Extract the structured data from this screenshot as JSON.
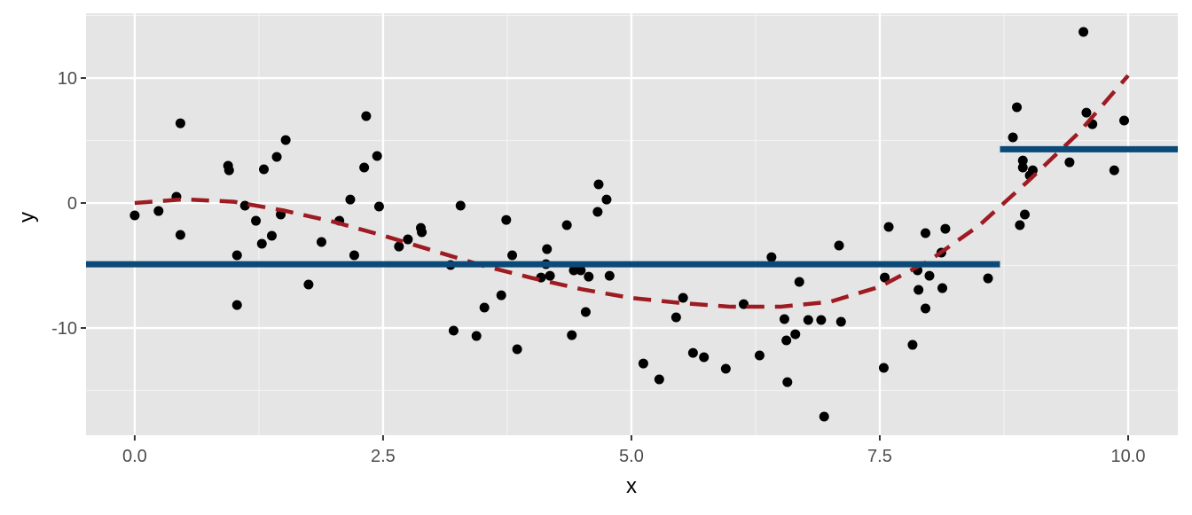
{
  "chart_data": {
    "type": "scatter",
    "x_label": "x",
    "y_label": "y",
    "xlim": [
      -0.49,
      10.5
    ],
    "ylim": [
      -18.58,
      15.18
    ],
    "xticks": [
      {
        "value": 0,
        "label": "0.0"
      },
      {
        "value": 2.5,
        "label": "2.5"
      },
      {
        "value": 5,
        "label": "5.0"
      },
      {
        "value": 7.5,
        "label": "7.5"
      },
      {
        "value": 10,
        "label": "10.0"
      }
    ],
    "yticks": [
      -10,
      0,
      10
    ],
    "minor_xticks": [
      1.25,
      3.75,
      6.25,
      8.75
    ],
    "minor_yticks": [
      -15,
      -5,
      5,
      15
    ],
    "grid": true,
    "points": {
      "color": "#000000",
      "x": [
        0.0,
        0.24,
        0.42,
        0.46,
        0.46,
        0.94,
        0.95,
        1.03,
        1.03,
        1.11,
        1.22,
        1.28,
        1.3,
        1.38,
        1.43,
        1.47,
        1.52,
        1.75,
        1.88,
        2.06,
        2.17,
        2.21,
        2.31,
        2.33,
        2.44,
        2.46,
        2.66,
        2.75,
        2.88,
        2.89,
        3.18,
        3.21,
        3.28,
        3.44,
        3.52,
        3.69,
        3.74,
        3.8,
        3.85,
        4.09,
        4.15,
        4.14,
        4.18,
        4.35,
        4.4,
        4.42,
        4.49,
        4.54,
        4.57,
        4.66,
        4.67,
        4.75,
        4.78,
        5.12,
        5.28,
        5.45,
        5.52,
        5.62,
        5.73,
        5.95,
        6.13,
        6.29,
        6.41,
        6.54,
        6.56,
        6.57,
        6.65,
        6.69,
        6.78,
        6.91,
        6.94,
        7.09,
        7.11,
        7.54,
        7.55,
        7.59,
        7.83,
        7.88,
        7.89,
        7.96,
        7.96,
        8.0,
        8.12,
        8.13,
        8.16,
        8.59,
        8.84,
        8.88,
        8.91,
        8.94,
        8.94,
        8.96,
        9.01,
        9.04,
        9.41,
        9.55,
        9.58,
        9.64,
        9.86,
        9.96
      ],
      "y": [
        -0.99,
        -0.64,
        0.5,
        6.38,
        -2.55,
        2.98,
        2.62,
        -4.18,
        -8.16,
        -0.21,
        -1.42,
        -3.26,
        2.7,
        -2.62,
        3.69,
        -0.92,
        5.04,
        -6.52,
        -3.12,
        -1.42,
        0.28,
        -4.18,
        2.84,
        6.95,
        3.76,
        -0.28,
        -3.48,
        -2.91,
        -1.99,
        -2.34,
        -4.96,
        -10.21,
        -0.21,
        -10.64,
        -8.37,
        -7.38,
        -1.35,
        -4.18,
        -11.7,
        -5.96,
        -3.69,
        -4.89,
        -5.82,
        -1.77,
        -10.57,
        -5.39,
        -5.39,
        -8.72,
        -5.89,
        -0.71,
        1.49,
        0.28,
        -5.82,
        -12.84,
        -14.11,
        -9.15,
        -7.59,
        -11.99,
        -12.34,
        -13.26,
        -8.09,
        -12.2,
        -4.33,
        -9.29,
        -10.99,
        -14.33,
        -10.5,
        -6.31,
        -9.36,
        -9.36,
        -17.09,
        -3.4,
        -9.5,
        -13.19,
        -5.96,
        -1.91,
        -11.35,
        -5.39,
        -6.95,
        -8.44,
        -2.41,
        -5.82,
        -3.97,
        -6.81,
        -2.06,
        -6.03,
        5.25,
        7.66,
        -1.77,
        3.4,
        2.84,
        -0.92,
        2.2,
        2.62,
        3.26,
        13.69,
        7.23,
        6.31,
        2.62,
        6.6
      ]
    },
    "curve": {
      "color": "#9e1b22",
      "x": [
        0,
        0.5,
        1,
        1.5,
        2,
        2.5,
        3,
        3.5,
        4,
        4.5,
        5,
        5.5,
        6,
        6.5,
        7,
        7.5,
        8,
        8.5,
        9,
        9.5,
        10
      ],
      "y": [
        0,
        0.3,
        0.1,
        -0.6,
        -1.5,
        -2.6,
        -3.8,
        -5.0,
        -6.0,
        -6.9,
        -7.6,
        -8.0,
        -8.3,
        -8.3,
        -7.9,
        -6.7,
        -4.6,
        -1.8,
        1.8,
        5.6,
        10.2
      ]
    },
    "segments": {
      "color": "#0b4a78",
      "x": [
        [
          -0.49,
          8.71
        ],
        [
          8.71,
          10.5
        ]
      ],
      "y": [
        -4.9,
        4.3
      ]
    }
  }
}
